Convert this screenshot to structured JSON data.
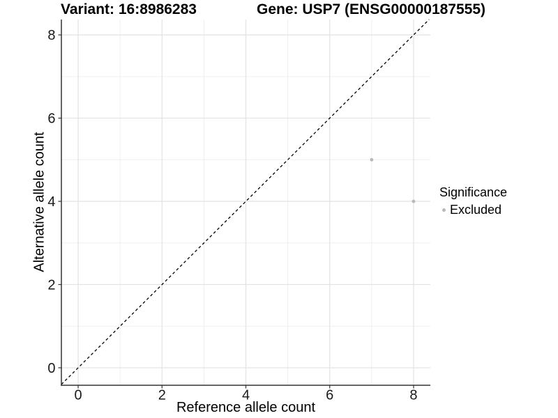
{
  "header": {
    "title_left": "Variant: 16:8986283",
    "title_right": "Gene: USP7 (ENSG00000187555)"
  },
  "chart_data": {
    "type": "scatter",
    "xlabel": "Reference allele count",
    "ylabel": "Alternative allele count",
    "x_ticks": [
      0,
      2,
      4,
      6,
      8
    ],
    "y_ticks": [
      0,
      2,
      4,
      6,
      8
    ],
    "x_minor_ticks": [
      1,
      3,
      5,
      7
    ],
    "y_minor_ticks": [
      1,
      3,
      5,
      7
    ],
    "xlim": [
      -0.4,
      8.4
    ],
    "ylim": [
      -0.42,
      8.37
    ],
    "grid": true,
    "series": [
      {
        "name": "Excluded",
        "color": "#b8b8b8",
        "points": [
          {
            "x": 7,
            "y": 5
          },
          {
            "x": 8,
            "y": 4
          }
        ]
      }
    ],
    "reference_line": {
      "type": "identity",
      "slope": 1,
      "intercept": 0,
      "style": "dashed",
      "color": "#000000"
    },
    "legend": {
      "title": "Significance",
      "position": "right",
      "entries": [
        {
          "label": "Excluded",
          "color": "#b8b8b8"
        }
      ]
    }
  }
}
